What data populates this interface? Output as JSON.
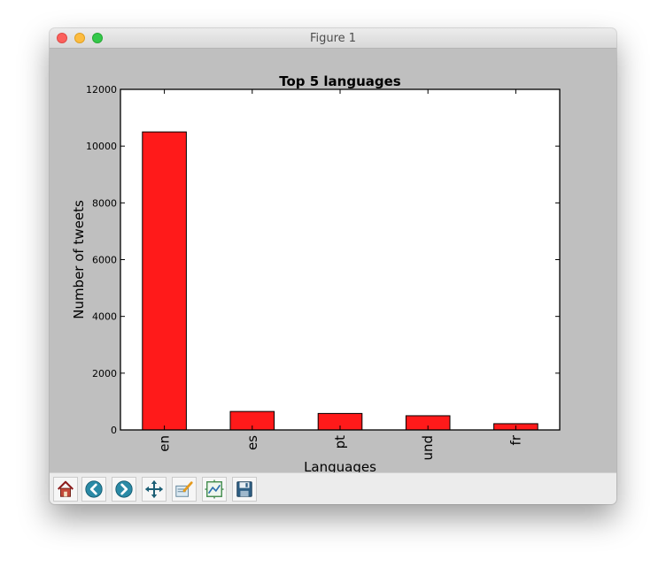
{
  "window": {
    "title": "Figure 1"
  },
  "toolbar": {
    "buttons": [
      {
        "name": "home-button",
        "icon": "home-icon"
      },
      {
        "name": "back-button",
        "icon": "back-arrow-icon"
      },
      {
        "name": "forward-button",
        "icon": "forward-arrow-icon"
      },
      {
        "name": "pan-button",
        "icon": "move-icon"
      },
      {
        "name": "zoom-button",
        "icon": "zoom-to-rect-icon"
      },
      {
        "name": "configure-subplots-button",
        "icon": "subplots-icon"
      },
      {
        "name": "save-button",
        "icon": "save-icon"
      }
    ]
  },
  "colors": {
    "bar": "#ff1a1a",
    "figure_background": "#bfbfbf",
    "axes_background": "#ffffff"
  },
  "chart_data": {
    "type": "bar",
    "title": "Top 5 languages",
    "xlabel": "Languages",
    "ylabel": "Number of tweets",
    "categories": [
      "en",
      "es",
      "pt",
      "und",
      "fr"
    ],
    "values": [
      10500,
      650,
      580,
      500,
      220
    ],
    "ylim": [
      0,
      12000
    ],
    "yticks": [
      0,
      2000,
      4000,
      6000,
      8000,
      10000,
      12000
    ],
    "grid": false,
    "legend": "none"
  }
}
